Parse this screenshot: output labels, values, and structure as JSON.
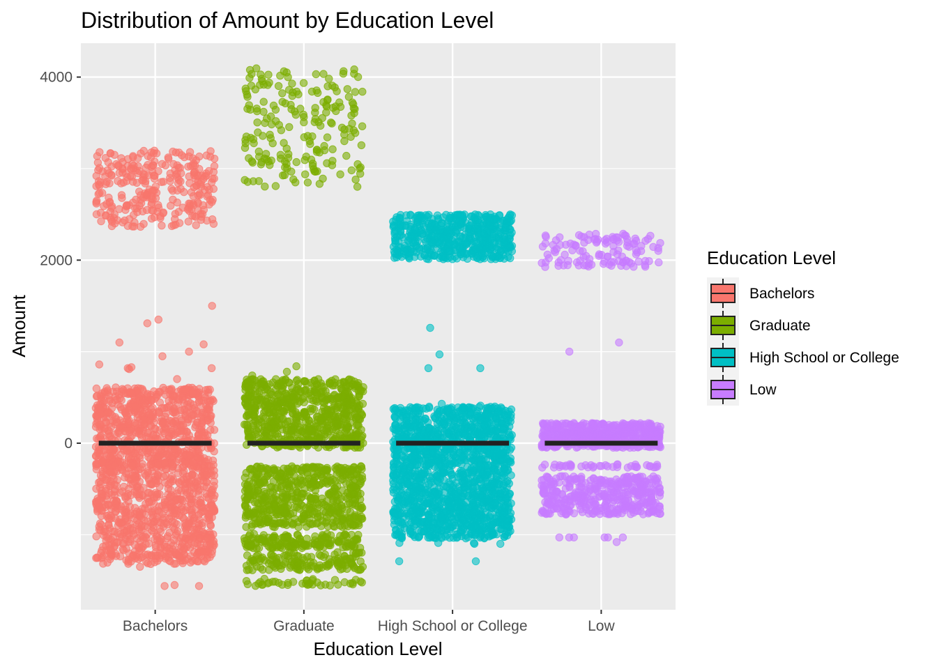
{
  "chart_data": {
    "type": "boxplot",
    "title": "Distribution of Amount by Education Level",
    "xlabel": "Education Level",
    "ylabel": "Amount",
    "categories": [
      "Bachelors",
      "Graduate",
      "High School or College",
      "Low"
    ],
    "ylim": [
      -1820,
      4370
    ],
    "yticks": [
      0,
      2000,
      4000
    ],
    "ytick_labels": [
      "0",
      "2000",
      "4000"
    ],
    "grid": true,
    "legend": {
      "title": "Education Level",
      "position": "right",
      "entries": [
        "Bachelors",
        "Graduate",
        "High School or College",
        "Low"
      ]
    },
    "colors": [
      "#F8766D",
      "#7CAE00",
      "#00BFC4",
      "#C77CFF"
    ],
    "series": [
      {
        "name": "Bachelors",
        "box": {
          "q1": -5,
          "median": 0,
          "q3": 5
        },
        "clusters": [
          {
            "y_range": [
              2360,
              3200
            ],
            "count": 300
          },
          {
            "y_range": [
              -230,
              610
            ],
            "count": 700
          },
          {
            "y_range": [
              -1320,
              -200
            ],
            "count": 800
          }
        ],
        "outliers": [
          1500,
          1350,
          1310,
          1100,
          1080,
          1000,
          950,
          860,
          830,
          820,
          820,
          810,
          700,
          -1350,
          -1560,
          -1560,
          -1550
        ]
      },
      {
        "name": "Graduate",
        "box": {
          "q1": -5,
          "median": 0,
          "q3": 10
        },
        "clusters": [
          {
            "y_range": [
              2800,
              4100
            ],
            "count": 200
          },
          {
            "y_range": [
              -50,
              700
            ],
            "count": 700
          },
          {
            "y_range": [
              -920,
              -250
            ],
            "count": 550
          },
          {
            "y_range": [
              -1150,
              -990
            ],
            "count": 160
          },
          {
            "y_range": [
              -1390,
              -1190
            ],
            "count": 140
          },
          {
            "y_range": [
              -1560,
              -1480
            ],
            "count": 40
          }
        ],
        "outliers": [
          840,
          780,
          740
        ]
      },
      {
        "name": "High School or College",
        "box": {
          "q1": -5,
          "median": 0,
          "q3": 5
        },
        "clusters": [
          {
            "y_range": [
              2010,
              2500
            ],
            "count": 550
          },
          {
            "y_range": [
              -200,
              400
            ],
            "count": 700
          },
          {
            "y_range": [
              -1040,
              -210
            ],
            "count": 900
          }
        ],
        "outliers": [
          1260,
          970,
          820,
          820,
          430,
          410,
          -1100,
          -1100,
          -1090,
          -1090,
          -1090,
          -1290,
          -1290
        ]
      },
      {
        "name": "Low",
        "box": {
          "q1": -5,
          "median": 0,
          "q3": 5
        },
        "clusters": [
          {
            "y_range": [
              1920,
              2290
            ],
            "count": 120
          },
          {
            "y_range": [
              -50,
              220
            ],
            "count": 500
          },
          {
            "y_range": [
              -780,
              -360
            ],
            "count": 400
          },
          {
            "y_range": [
              -270,
              -230
            ],
            "count": 40
          }
        ],
        "outliers": [
          1100,
          1000,
          -1030,
          -1030,
          -1030,
          -1030,
          -1030,
          -1030,
          -1080
        ]
      }
    ]
  }
}
